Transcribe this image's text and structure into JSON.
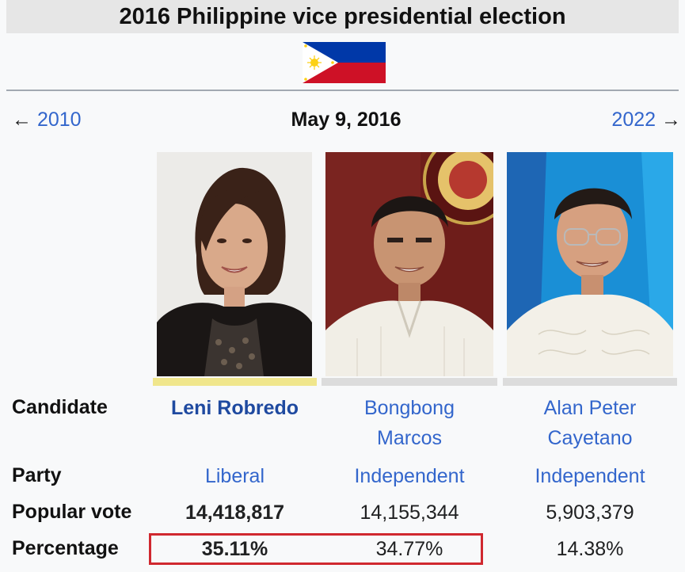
{
  "title": "2016 Philippine vice presidential election",
  "navigation": {
    "prev_arrow": "←",
    "prev_label": "2010",
    "date": "May 9, 2016",
    "next_label": "2022",
    "next_arrow": "→"
  },
  "row_labels": {
    "candidate": "Candidate",
    "party": "Party",
    "popular_vote": "Popular vote",
    "percentage": "Percentage"
  },
  "candidates": [
    {
      "name_line1": "Leni Robredo",
      "name_line2": "",
      "party": "Liberal",
      "popular_vote": "14,418,817",
      "percentage": "35.11%",
      "party_color": "#f0e68c"
    },
    {
      "name_line1": "Bongbong",
      "name_line2": "Marcos",
      "party": "Independent",
      "popular_vote": "14,155,344",
      "percentage": "34.77%",
      "party_color": "#dcdcdc"
    },
    {
      "name_line1": "Alan Peter",
      "name_line2": "Cayetano",
      "party": "Independent",
      "popular_vote": "5,903,379",
      "percentage": "14.38%",
      "party_color": "#dcdcdc"
    }
  ],
  "colors": {
    "link": "#3366cc",
    "highlight_border": "#d0282f",
    "title_background": "#e6e6e6"
  },
  "icons": [
    "philippine-flag-icon",
    "arrow-left-icon",
    "arrow-right-icon"
  ]
}
